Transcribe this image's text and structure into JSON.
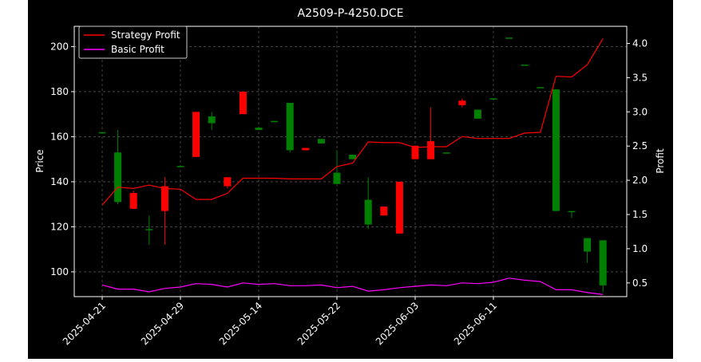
{
  "chart_data": {
    "type": "candlestick",
    "title": "A2509-P-4250.DCE",
    "ylabel_left": "Price",
    "ylabel_right": "Profit",
    "grid": true,
    "legend_position": "top-left",
    "ylim_left": [
      89,
      209
    ],
    "ylim_right": [
      0.3,
      4.25
    ],
    "yticks_left": [
      "100",
      "120",
      "140",
      "160",
      "180",
      "200"
    ],
    "yticks_right": [
      "0.5",
      "1.0",
      "1.5",
      "2.0",
      "2.5",
      "3.0",
      "3.5",
      "4.0"
    ],
    "xtick_labels": [
      "2025-04-21",
      "2025-04-29",
      "2025-05-14",
      "2025-05-22",
      "2025-06-03",
      "2025-06-11"
    ],
    "xtick_indices": [
      0,
      5,
      10,
      15,
      20,
      25
    ],
    "colors": {
      "up": "#008000",
      "down": "#ff0000",
      "strategy": "#ff0000",
      "basic": "#ff00ff",
      "background": "#000000",
      "text": "#ffffff"
    },
    "candles": [
      {
        "o": 162,
        "h": 162,
        "l": 162,
        "c": 162
      },
      {
        "o": 131,
        "h": 163,
        "l": 130,
        "c": 153
      },
      {
        "o": 135,
        "h": 136,
        "l": 128,
        "c": 128
      },
      {
        "o": 119,
        "h": 125,
        "l": 112,
        "c": 119
      },
      {
        "o": 138,
        "h": 142,
        "l": 112,
        "c": 127
      },
      {
        "o": 147,
        "h": 147,
        "l": 147,
        "c": 147
      },
      {
        "o": 171,
        "h": 171,
        "l": 151,
        "c": 151
      },
      {
        "o": 166,
        "h": 171,
        "l": 163,
        "c": 169
      },
      {
        "o": 142,
        "h": 142,
        "l": 137,
        "c": 138
      },
      {
        "o": 180,
        "h": 180,
        "l": 170,
        "c": 170
      },
      {
        "o": 163,
        "h": 164,
        "l": 163,
        "c": 164
      },
      {
        "o": 167,
        "h": 167,
        "l": 167,
        "c": 167
      },
      {
        "o": 154,
        "h": 175,
        "l": 153,
        "c": 175
      },
      {
        "o": 155,
        "h": 155,
        "l": 154,
        "c": 154
      },
      {
        "o": 157,
        "h": 159,
        "l": 157,
        "c": 159
      },
      {
        "o": 139,
        "h": 154,
        "l": 139,
        "c": 144
      },
      {
        "o": 150,
        "h": 152,
        "l": 150,
        "c": 152
      },
      {
        "o": 121,
        "h": 142,
        "l": 119,
        "c": 132
      },
      {
        "o": 129,
        "h": 129,
        "l": 125,
        "c": 125
      },
      {
        "o": 140,
        "h": 140,
        "l": 117,
        "c": 117
      },
      {
        "o": 156,
        "h": 156,
        "l": 150,
        "c": 150
      },
      {
        "o": 158,
        "h": 173,
        "l": 150,
        "c": 150
      },
      {
        "o": 153,
        "h": 153,
        "l": 153,
        "c": 153
      },
      {
        "o": 176,
        "h": 177,
        "l": 173,
        "c": 174
      },
      {
        "o": 168,
        "h": 172,
        "l": 168,
        "c": 172
      },
      {
        "o": 177,
        "h": 177,
        "l": 177,
        "c": 177
      },
      {
        "o": 204,
        "h": 204,
        "l": 204,
        "c": 204
      },
      {
        "o": 192,
        "h": 192,
        "l": 192,
        "c": 192
      },
      {
        "o": 182,
        "h": 182,
        "l": 182,
        "c": 182
      },
      {
        "o": 127,
        "h": 181,
        "l": 127,
        "c": 181
      },
      {
        "o": 127,
        "h": 127,
        "l": 124,
        "c": 127
      },
      {
        "o": 109,
        "h": 115,
        "l": 104,
        "c": 115
      },
      {
        "o": 94,
        "h": 114,
        "l": 91,
        "c": 114
      }
    ],
    "series": [
      {
        "name": "Strategy Profit",
        "values": [
          1.64,
          1.9,
          1.88,
          1.93,
          1.88,
          1.87,
          1.72,
          1.72,
          1.81,
          2.03,
          2.03,
          2.03,
          2.02,
          2.02,
          2.02,
          2.2,
          2.25,
          2.56,
          2.55,
          2.55,
          2.48,
          2.49,
          2.49,
          2.64,
          2.61,
          2.61,
          2.61,
          2.69,
          2.7,
          3.52,
          3.51,
          3.69,
          4.07
        ]
      },
      {
        "name": "Basic Profit",
        "values": [
          0.47,
          0.41,
          0.41,
          0.37,
          0.42,
          0.44,
          0.49,
          0.48,
          0.44,
          0.5,
          0.48,
          0.49,
          0.46,
          0.46,
          0.47,
          0.43,
          0.45,
          0.38,
          0.4,
          0.43,
          0.45,
          0.47,
          0.46,
          0.5,
          0.49,
          0.51,
          0.57,
          0.54,
          0.52,
          0.4,
          0.4,
          0.36,
          0.33
        ]
      }
    ]
  }
}
